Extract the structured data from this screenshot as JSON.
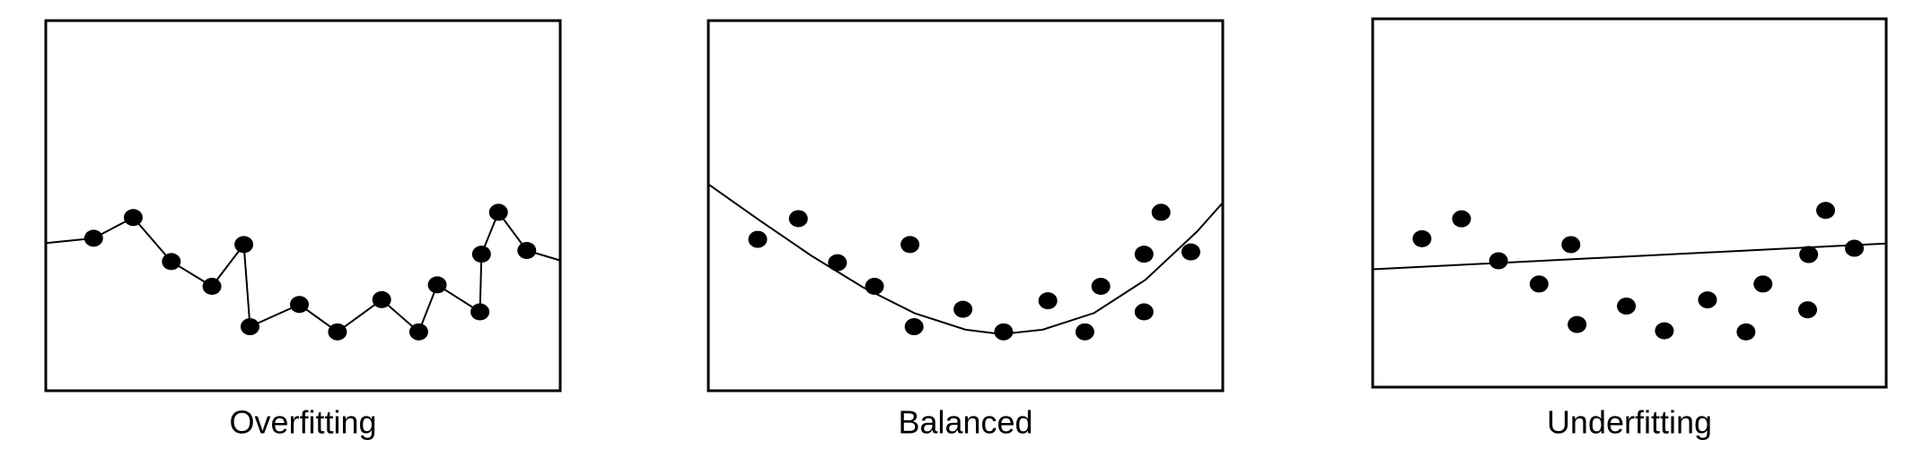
{
  "chart_data": [
    {
      "type": "scatter",
      "title": "Overfitting",
      "color": "#000000",
      "xlim": [
        0,
        100
      ],
      "ylim": [
        0,
        100
      ],
      "x": [
        9.3,
        17.0,
        24.4,
        32.3,
        38.5,
        39.7,
        49.3,
        56.7,
        65.3,
        72.5,
        76.1,
        84.4,
        84.7,
        88.0,
        93.5
      ],
      "values": [
        41.2,
        46.8,
        34.9,
        28.2,
        39.5,
        17.3,
        23.3,
        15.9,
        24.6,
        15.9,
        28.6,
        21.3,
        36.9,
        48.2,
        37.9
      ],
      "fit": {
        "x": [
          0,
          9.3,
          17.0,
          24.4,
          32.3,
          38.5,
          39.7,
          49.3,
          56.7,
          65.3,
          72.5,
          76.1,
          84.4,
          84.7,
          88.0,
          93.5,
          100
        ],
        "y": [
          39.9,
          41.2,
          46.8,
          34.9,
          28.2,
          39.5,
          17.3,
          23.3,
          15.9,
          24.6,
          15.9,
          28.6,
          21.3,
          36.9,
          48.2,
          37.9,
          35.2
        ]
      }
    },
    {
      "type": "scatter",
      "title": "Balanced",
      "color": "#000000",
      "xlim": [
        0,
        100
      ],
      "ylim": [
        0,
        100
      ],
      "x": [
        9.6,
        17.5,
        25.1,
        32.3,
        39.2,
        40.0,
        49.5,
        57.4,
        66.0,
        73.2,
        76.3,
        84.7,
        84.7,
        88.0,
        93.8
      ],
      "values": [
        40.9,
        46.5,
        34.6,
        28.2,
        39.5,
        17.3,
        22.0,
        15.9,
        24.3,
        15.9,
        28.2,
        21.3,
        36.9,
        48.2,
        37.5
      ],
      "fit": {
        "x": [
          0,
          10,
          20,
          30,
          40,
          50,
          57,
          65,
          75,
          85,
          95,
          100
        ],
        "y": [
          55.8,
          46,
          36.5,
          28,
          21,
          16.5,
          15.3,
          16.5,
          21,
          30,
          43,
          50.8
        ]
      }
    },
    {
      "type": "scatter",
      "title": "Underfitting",
      "color": "#000000",
      "xlim": [
        0,
        100
      ],
      "ylim": [
        0,
        100
      ],
      "x": [
        9.6,
        17.3,
        24.5,
        32.4,
        38.6,
        39.8,
        49.4,
        56.8,
        65.2,
        72.7,
        76.0,
        84.7,
        84.9,
        88.2,
        93.8
      ],
      "values": [
        40.3,
        45.7,
        34.3,
        28.0,
        38.7,
        17.0,
        22.0,
        15.3,
        23.7,
        15.0,
        28.0,
        21.0,
        36.0,
        48.0,
        37.7
      ],
      "fit": {
        "x": [
          0,
          100
        ],
        "y": [
          32.0,
          39.0
        ]
      }
    }
  ]
}
